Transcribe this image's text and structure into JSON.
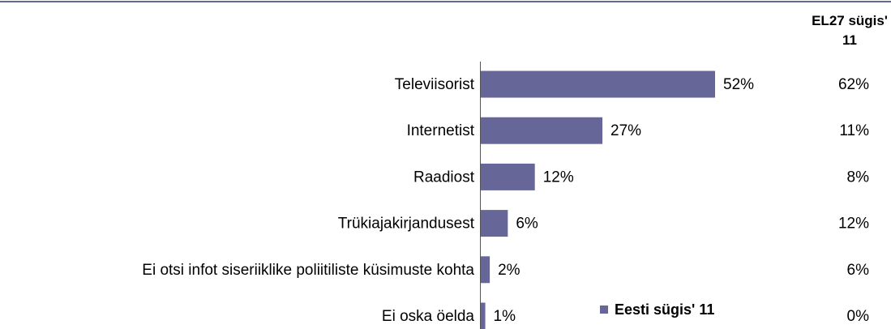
{
  "chart_data": {
    "type": "bar",
    "orientation": "horizontal",
    "categories": [
      "Televiisorist",
      "Internetist",
      "Raadiost",
      "Trükiajakirjandusest",
      "Ei otsi infot siseriiklike poliitiliste küsimuste kohta",
      "Ei oska öelda"
    ],
    "series": [
      {
        "name": "Eesti sügis' 11",
        "color": "#666699",
        "values": [
          52,
          27,
          12,
          6,
          2,
          1
        ],
        "value_labels": [
          "52%",
          "27%",
          "12%",
          "6%",
          "2%",
          "1%"
        ]
      },
      {
        "name": "EL27 sügis' 11",
        "values": [
          62,
          11,
          8,
          12,
          6,
          0
        ],
        "value_labels": [
          "62%",
          "11%",
          "8%",
          "12%",
          "6%",
          "0%"
        ]
      }
    ],
    "legend": "bottom-right"
  }
}
